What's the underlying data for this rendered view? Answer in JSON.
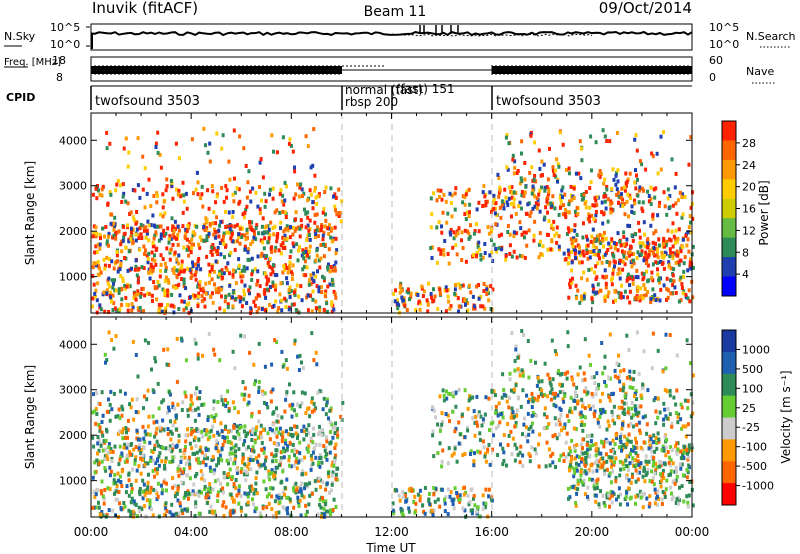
{
  "header": {
    "station": "Inuvik (fitACF)",
    "beam": "Beam 11",
    "date": "09/Oct/2014"
  },
  "colors": {
    "power_scale": [
      "#0000ff",
      "#1f3fb0",
      "#2e8b57",
      "#66bb44",
      "#cccc00",
      "#ffcc00",
      "#ff9900",
      "#ff6600",
      "#ff2200"
    ],
    "velocity_scale": [
      "#ff0000",
      "#ff6600",
      "#ff9900",
      "#cccccc",
      "#66cc33",
      "#2e8b57",
      "#1f5fb0",
      "#1a3aa0"
    ],
    "gridline": "#bbbbbb"
  },
  "chart_data": [
    {
      "type": "line",
      "panel": "noise",
      "left_label": "N.Sky",
      "right_label": "N.Search",
      "left_ticks": [
        "10^5",
        "10^0"
      ],
      "right_ticks": [
        "10^5",
        "10^0"
      ],
      "notes": [
        "spikes near 13:00-15:00 UT"
      ]
    },
    {
      "type": "line",
      "panel": "frequency-nave",
      "left_label": "Freq. [MHz]",
      "right_label": "Nave",
      "left_ticks": [
        "18",
        "8"
      ],
      "right_ticks": [
        "60",
        "0"
      ]
    },
    {
      "type": "table",
      "panel": "cpid",
      "label": "CPID",
      "segments": [
        {
          "start_hour": 0,
          "end_hour": 10,
          "text": "twofsound 3503"
        },
        {
          "start_hour": 10,
          "end_hour": 12,
          "text": "normal (fast)\nrbsp 200"
        },
        {
          "start_hour": 12,
          "end_hour": 16,
          "text": "(fast)  151"
        },
        {
          "start_hour": 16,
          "end_hour": 24,
          "text": "twofsound 3503"
        }
      ]
    },
    {
      "type": "heatmap",
      "panel": "power",
      "ylabel": "Slant Range [km]",
      "yticks": [
        1000,
        2000,
        3000,
        4000
      ],
      "ylim": [
        200,
        4600
      ],
      "xlim": [
        0,
        24
      ],
      "colorbar": {
        "label": "Power [dB]",
        "ticks": [
          "28",
          "24",
          "20",
          "16",
          "12",
          "8",
          "4"
        ]
      }
    },
    {
      "type": "heatmap",
      "panel": "velocity",
      "ylabel": "Slant Range [km]",
      "yticks": [
        1000,
        2000,
        3000,
        4000
      ],
      "ylim": [
        200,
        4600
      ],
      "xlim": [
        0,
        24
      ],
      "xlabel": "Time UT",
      "xticks": [
        "00:00",
        "04:00",
        "08:00",
        "12:00",
        "16:00",
        "20:00",
        "00:00"
      ],
      "colorbar": {
        "label": "Velocity [m s⁻¹]",
        "ticks": [
          "1000",
          "500",
          "100",
          "25",
          "-25",
          "-100",
          "-500",
          "-1000"
        ]
      }
    }
  ]
}
